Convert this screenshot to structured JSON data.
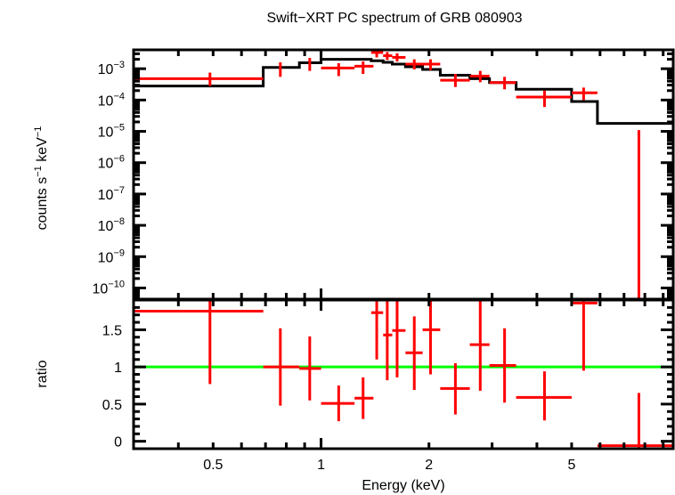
{
  "chart_data": [
    {
      "panel": "spectrum",
      "type": "scatter",
      "title": "Swift−XRT PC spectrum of GRB 080903",
      "xlabel": "",
      "ylabel": "counts s⁻¹ keV⁻¹",
      "xscale": "log",
      "yscale": "log",
      "xlim": [
        0.3,
        9.6
      ],
      "ylim": [
        4.4e-11,
        0.004
      ],
      "yticks": [
        {
          "exp": "−3",
          "value": 0.001
        },
        {
          "exp": "−4",
          "value": 0.0001
        },
        {
          "exp": "−5",
          "value": 1e-05
        },
        {
          "exp": "−6",
          "value": 1e-06
        },
        {
          "exp": "−7",
          "value": 1e-07
        },
        {
          "exp": "−8",
          "value": 1e-08
        },
        {
          "exp": "−9",
          "value": 1e-09
        },
        {
          "exp": "−10",
          "value": 1e-10
        }
      ],
      "ytick_base": "10",
      "series": [
        {
          "name": "data",
          "color": "#ff0000",
          "points": [
            {
              "x": 0.49,
              "xlo": 0.3,
              "xhi": 0.69,
              "y": 0.00048,
              "ylo": 0.00028,
              "yhi": 0.00075
            },
            {
              "x": 0.77,
              "xlo": 0.77,
              "xhi": 0.77,
              "y": 0.00095,
              "ylo": 0.00055,
              "yhi": 0.0016
            },
            {
              "x": 0.93,
              "xlo": 0.93,
              "xhi": 0.93,
              "y": 0.00135,
              "ylo": 0.00085,
              "yhi": 0.0022
            },
            {
              "x": 1.12,
              "xlo": 1.0,
              "xhi": 1.24,
              "y": 0.00105,
              "ylo": 0.00058,
              "yhi": 0.0015
            },
            {
              "x": 1.31,
              "xlo": 1.24,
              "xhi": 1.4,
              "y": 0.0012,
              "ylo": 0.00068,
              "yhi": 0.0017
            },
            {
              "x": 1.43,
              "xlo": 1.38,
              "xhi": 1.49,
              "y": 0.0033,
              "ylo": 0.0023,
              "yhi": 0.004
            },
            {
              "x": 1.53,
              "xlo": 1.49,
              "xhi": 1.58,
              "y": 0.0026,
              "ylo": 0.0019,
              "yhi": 0.0034
            },
            {
              "x": 1.63,
              "xlo": 1.58,
              "xhi": 1.72,
              "y": 0.0023,
              "ylo": 0.0017,
              "yhi": 0.0031
            },
            {
              "x": 1.82,
              "xlo": 1.72,
              "xhi": 1.92,
              "y": 0.0014,
              "ylo": 0.00095,
              "yhi": 0.002
            },
            {
              "x": 2.02,
              "xlo": 1.92,
              "xhi": 2.15,
              "y": 0.0014,
              "ylo": 0.0009,
              "yhi": 0.002
            },
            {
              "x": 2.37,
              "xlo": 2.15,
              "xhi": 2.6,
              "y": 0.00043,
              "ylo": 0.00026,
              "yhi": 0.00068
            },
            {
              "x": 2.78,
              "xlo": 2.6,
              "xhi": 2.95,
              "y": 0.00058,
              "ylo": 0.00037,
              "yhi": 0.00085
            },
            {
              "x": 3.25,
              "xlo": 2.95,
              "xhi": 3.5,
              "y": 0.00036,
              "ylo": 0.00022,
              "yhi": 0.00055
            },
            {
              "x": 4.2,
              "xlo": 3.5,
              "xhi": 5.0,
              "y": 0.000125,
              "ylo": 6e-05,
              "yhi": 0.0002
            },
            {
              "x": 5.4,
              "xlo": 5.0,
              "xhi": 5.9,
              "y": 0.00017,
              "ylo": 0.0001,
              "yhi": 0.00025
            },
            {
              "x": 7.7,
              "xlo": 7.7,
              "xhi": 7.7,
              "y": 4.4e-11,
              "ylo": 4.4e-11,
              "yhi": 1.1e-05
            }
          ]
        },
        {
          "name": "model",
          "color": "#000000",
          "type": "step",
          "steps": [
            {
              "xlo": 0.3,
              "xhi": 0.69,
              "y": 0.00028
            },
            {
              "xlo": 0.69,
              "xhi": 0.87,
              "y": 0.0011
            },
            {
              "xlo": 0.87,
              "xhi": 1.0,
              "y": 0.00155
            },
            {
              "xlo": 1.0,
              "xhi": 1.38,
              "y": 0.002
            },
            {
              "xlo": 1.38,
              "xhi": 1.49,
              "y": 0.0018
            },
            {
              "xlo": 1.49,
              "xhi": 1.58,
              "y": 0.0016
            },
            {
              "xlo": 1.58,
              "xhi": 1.72,
              "y": 0.0014
            },
            {
              "xlo": 1.72,
              "xhi": 1.92,
              "y": 0.00115
            },
            {
              "xlo": 1.92,
              "xhi": 2.15,
              "y": 0.00095
            },
            {
              "xlo": 2.15,
              "xhi": 2.6,
              "y": 0.00062
            },
            {
              "xlo": 2.6,
              "xhi": 2.95,
              "y": 0.00048
            },
            {
              "xlo": 2.95,
              "xhi": 3.5,
              "y": 0.00036
            },
            {
              "xlo": 3.5,
              "xhi": 5.0,
              "y": 0.00022
            },
            {
              "xlo": 5.0,
              "xhi": 5.9,
              "y": 9e-05
            },
            {
              "xlo": 5.9,
              "xhi": 9.6,
              "y": 1.8e-05
            }
          ]
        }
      ]
    },
    {
      "panel": "ratio",
      "type": "scatter",
      "xlabel": "Energy (keV)",
      "ylabel": "ratio",
      "xscale": "log",
      "xlim": [
        0.3,
        9.6
      ],
      "ylim": [
        -0.1,
        1.9
      ],
      "xticks": [
        {
          "label": "0.5",
          "value": 0.5
        },
        {
          "label": "1",
          "value": 1
        },
        {
          "label": "2",
          "value": 2
        },
        {
          "label": "5",
          "value": 5
        }
      ],
      "yticks": [
        {
          "label": "0",
          "value": 0
        },
        {
          "label": "0.5",
          "value": 0.5
        },
        {
          "label": "1",
          "value": 1
        },
        {
          "label": "1.5",
          "value": 1.5
        }
      ],
      "reference_line": {
        "y": 1,
        "color": "#00ff00"
      },
      "series": [
        {
          "name": "ratio",
          "color": "#ff0000",
          "points": [
            {
              "x": 0.49,
              "xlo": 0.3,
              "xhi": 0.69,
              "y": 1.75,
              "ylo": 0.77,
              "yhi": 1.9
            },
            {
              "x": 0.77,
              "xlo": 0.69,
              "xhi": 0.87,
              "y": 1.0,
              "ylo": 0.48,
              "yhi": 1.52
            },
            {
              "x": 0.93,
              "xlo": 0.87,
              "xhi": 1.0,
              "y": 0.98,
              "ylo": 0.55,
              "yhi": 1.41
            },
            {
              "x": 1.12,
              "xlo": 1.0,
              "xhi": 1.24,
              "y": 0.51,
              "ylo": 0.27,
              "yhi": 0.75
            },
            {
              "x": 1.31,
              "xlo": 1.24,
              "xhi": 1.4,
              "y": 0.58,
              "ylo": 0.3,
              "yhi": 0.86
            },
            {
              "x": 1.43,
              "xlo": 1.38,
              "xhi": 1.49,
              "y": 1.73,
              "ylo": 1.1,
              "yhi": 1.9
            },
            {
              "x": 1.53,
              "xlo": 1.49,
              "xhi": 1.58,
              "y": 1.43,
              "ylo": 0.82,
              "yhi": 1.9
            },
            {
              "x": 1.63,
              "xlo": 1.58,
              "xhi": 1.72,
              "y": 1.49,
              "ylo": 0.86,
              "yhi": 1.9
            },
            {
              "x": 1.82,
              "xlo": 1.72,
              "xhi": 1.92,
              "y": 1.19,
              "ylo": 0.69,
              "yhi": 1.68
            },
            {
              "x": 2.02,
              "xlo": 1.92,
              "xhi": 2.15,
              "y": 1.5,
              "ylo": 0.9,
              "yhi": 1.9
            },
            {
              "x": 2.37,
              "xlo": 2.15,
              "xhi": 2.6,
              "y": 0.71,
              "ylo": 0.36,
              "yhi": 1.05
            },
            {
              "x": 2.78,
              "xlo": 2.6,
              "xhi": 2.95,
              "y": 1.3,
              "ylo": 0.68,
              "yhi": 1.9
            },
            {
              "x": 3.25,
              "xlo": 2.95,
              "xhi": 3.5,
              "y": 1.02,
              "ylo": 0.52,
              "yhi": 1.52
            },
            {
              "x": 4.2,
              "xlo": 3.5,
              "xhi": 5.0,
              "y": 0.59,
              "ylo": 0.28,
              "yhi": 0.94
            },
            {
              "x": 5.4,
              "xlo": 5.0,
              "xhi": 5.9,
              "y": 1.86,
              "ylo": 0.95,
              "yhi": 1.9
            },
            {
              "x": 7.7,
              "xlo": 5.9,
              "xhi": 9.6,
              "y": -0.06,
              "ylo": -0.1,
              "yhi": 0.65
            }
          ]
        }
      ]
    }
  ]
}
